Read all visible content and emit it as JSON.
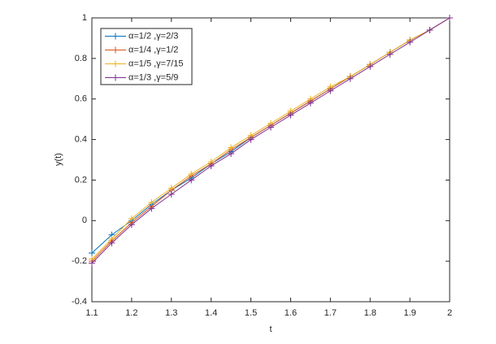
{
  "chart_data": {
    "type": "line",
    "xlabel": "t",
    "ylabel": "y(t)",
    "x": [
      1.1,
      1.15,
      1.2,
      1.25,
      1.3,
      1.35,
      1.4,
      1.45,
      1.5,
      1.55,
      1.6,
      1.65,
      1.7,
      1.75,
      1.8,
      1.85,
      1.9,
      1.95,
      2
    ],
    "series": [
      {
        "name": "α=1/2 ,γ=2/3",
        "color": "#0072bd",
        "values": [
          -0.16,
          -0.07,
          0.0,
          0.08,
          0.15,
          0.21,
          0.28,
          0.34,
          0.41,
          0.47,
          0.53,
          0.59,
          0.65,
          0.71,
          0.77,
          0.83,
          0.89,
          0.94,
          1
        ]
      },
      {
        "name": "α=1/4 ,γ=1/2",
        "color": "#d95319",
        "values": [
          -0.2,
          -0.1,
          -0.01,
          0.07,
          0.15,
          0.22,
          0.28,
          0.35,
          0.41,
          0.47,
          0.53,
          0.59,
          0.65,
          0.71,
          0.77,
          0.83,
          0.89,
          0.94,
          1
        ]
      },
      {
        "name": "α=1/5 ,γ=7/15",
        "color": "#edb120",
        "values": [
          -0.19,
          -0.09,
          0.01,
          0.09,
          0.16,
          0.23,
          0.29,
          0.36,
          0.42,
          0.48,
          0.54,
          0.6,
          0.66,
          0.71,
          0.77,
          0.83,
          0.89,
          0.94,
          1
        ]
      },
      {
        "name": "α=1/3 ,γ=5/9",
        "color": "#7e2f8e",
        "values": [
          -0.21,
          -0.11,
          -0.02,
          0.06,
          0.13,
          0.2,
          0.27,
          0.33,
          0.4,
          0.46,
          0.52,
          0.58,
          0.64,
          0.7,
          0.76,
          0.82,
          0.88,
          0.94,
          1
        ]
      }
    ],
    "xlim": [
      1.1,
      2
    ],
    "xticks": [
      1.1,
      1.2,
      1.3,
      1.4,
      1.5,
      1.6,
      1.7,
      1.8,
      1.9,
      2
    ],
    "ylim": [
      -0.4,
      1
    ],
    "yticks": [
      -0.4,
      -0.2,
      0,
      0.2,
      0.4,
      0.6,
      0.8,
      1
    ],
    "legend": "upper-left",
    "marker": "+"
  }
}
